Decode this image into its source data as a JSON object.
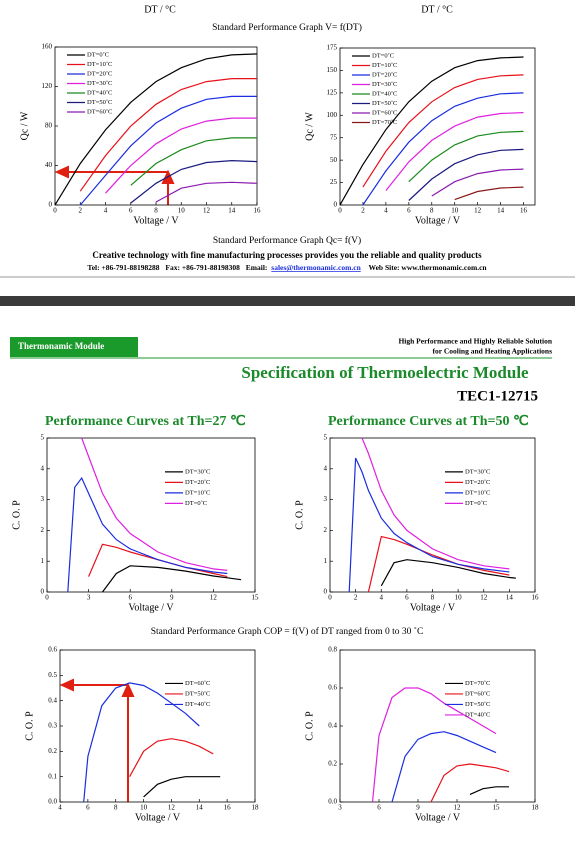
{
  "top_section": {
    "dt_label_left": "DT / °C",
    "dt_label_right": "DT / °C",
    "caption_vdt": "Standard Performance Graph V= f(DT)",
    "caption_qc": "Standard Performance Graph Qc= f(V)",
    "footer_slogan": "Creative technology with fine manufacturing processes provides you the reliable and quality products",
    "footer_tel": "Tel: +86-791-88198288",
    "footer_fax": "Fax: +86-791-88198308",
    "footer_email_label": "Email:",
    "footer_email": "sales@thermonamic.com.cn",
    "footer_web": "Web Site: www.thermonamic.com.cn"
  },
  "page_header": {
    "badge": "Thermonamic Module",
    "tagline_1": "High Performance and Highly Reliable Solution",
    "tagline_2": "for Cooling and Heating Applications",
    "title": "Specification of Thermoelectric Module",
    "model": "TEC1-12715"
  },
  "caption_cop": "Standard Performance Graph COP = f(V) of DT ranged from 0 to 30 ˚C",
  "chart_data": [
    {
      "type": "line",
      "x_label": "Voltage / V",
      "y_label": "Qc / W",
      "x": [
        0,
        2,
        4,
        6,
        8,
        10,
        12,
        14,
        16
      ],
      "xlim": [
        0,
        16
      ],
      "xticks": [
        0,
        2,
        4,
        6,
        8,
        10,
        12,
        14,
        16
      ],
      "ylim": [
        0,
        160
      ],
      "yticks": [
        0,
        40,
        80,
        120,
        160
      ],
      "legend": "upper left",
      "series": [
        {
          "name": "DT=0˚C",
          "color": "#000000",
          "values": [
            0,
            42,
            76,
            104,
            125,
            139,
            148,
            152,
            153
          ]
        },
        {
          "name": "DT=10˚C",
          "color": "#e8101a",
          "values": [
            null,
            14,
            50,
            80,
            102,
            117,
            125,
            128,
            128
          ]
        },
        {
          "name": "DT=20˚C",
          "color": "#1a2de0",
          "values": [
            null,
            0,
            30,
            60,
            83,
            98,
            107,
            110,
            110
          ]
        },
        {
          "name": "DT=30˚C",
          "color": "#e020e0",
          "values": [
            null,
            null,
            12,
            40,
            62,
            77,
            85,
            88,
            88
          ]
        },
        {
          "name": "DT=40˚C",
          "color": "#1a8a1a",
          "values": [
            null,
            null,
            null,
            20,
            42,
            56,
            65,
            68,
            68
          ]
        },
        {
          "name": "DT=50˚C",
          "color": "#1a1a80",
          "values": [
            null,
            null,
            null,
            2,
            22,
            36,
            43,
            45,
            44
          ]
        },
        {
          "name": "DT=60˚C",
          "color": "#8a1ab0",
          "values": [
            null,
            null,
            null,
            null,
            3,
            17,
            22,
            23,
            22
          ]
        }
      ]
    },
    {
      "type": "line",
      "x_label": "Voltage / V",
      "y_label": "Qc / W",
      "x": [
        0,
        2,
        4,
        6,
        8,
        10,
        12,
        14,
        16
      ],
      "xlim": [
        0,
        17
      ],
      "xticks": [
        0,
        2,
        4,
        6,
        8,
        10,
        12,
        14,
        16
      ],
      "ylim": [
        0,
        175
      ],
      "yticks": [
        0,
        25,
        50,
        75,
        100,
        125,
        150,
        175
      ],
      "legend": "upper left",
      "series": [
        {
          "name": "DT=0˚C",
          "color": "#000000",
          "values": [
            0,
            45,
            84,
            115,
            138,
            153,
            161,
            164,
            165
          ]
        },
        {
          "name": "DT=10˚C",
          "color": "#e8101a",
          "values": [
            null,
            20,
            60,
            92,
            115,
            131,
            140,
            144,
            145
          ]
        },
        {
          "name": "DT=20˚C",
          "color": "#1a2de0",
          "values": [
            null,
            0,
            38,
            70,
            94,
            110,
            119,
            124,
            125
          ]
        },
        {
          "name": "DT=30˚C",
          "color": "#e020e0",
          "values": [
            null,
            null,
            16,
            48,
            72,
            88,
            98,
            102,
            103
          ]
        },
        {
          "name": "DT=40˚C",
          "color": "#1a8a1a",
          "values": [
            null,
            null,
            null,
            26,
            50,
            67,
            77,
            81,
            82
          ]
        },
        {
          "name": "DT=50˚C",
          "color": "#1a1a80",
          "values": [
            null,
            null,
            null,
            5,
            29,
            46,
            56,
            61,
            62
          ]
        },
        {
          "name": "DT=60˚C",
          "color": "#8a1ab0",
          "values": [
            null,
            null,
            null,
            null,
            10,
            26,
            35,
            39,
            40
          ]
        },
        {
          "name": "DT=70˚C",
          "color": "#8a1a1a",
          "values": [
            null,
            null,
            null,
            null,
            null,
            6,
            15,
            19,
            20
          ]
        }
      ]
    },
    {
      "type": "line",
      "title": "Performance Curves at Th=27 ℃",
      "x_label": "Voltage / V",
      "y_label": "C. O. P",
      "x": [
        1.5,
        2,
        2.5,
        3,
        4,
        5,
        6,
        8,
        10,
        12,
        13,
        14
      ],
      "xlim": [
        0,
        15
      ],
      "xticks": [
        0,
        3,
        6,
        9,
        12,
        15
      ],
      "ylim": [
        0,
        5
      ],
      "yticks": [
        0,
        1,
        2,
        3,
        4,
        5
      ],
      "legend": "upper right",
      "series": [
        {
          "name": "DT=30˚C",
          "color": "#000000",
          "values": [
            null,
            null,
            null,
            null,
            0,
            0.6,
            0.85,
            0.8,
            0.68,
            0.52,
            0.46,
            0.4
          ]
        },
        {
          "name": "DT=20˚C",
          "color": "#e8101a",
          "values": [
            null,
            null,
            null,
            0.5,
            1.55,
            1.45,
            1.3,
            1.05,
            0.8,
            0.6,
            0.5,
            null
          ]
        },
        {
          "name": "DT=10˚C",
          "color": "#1a2de0",
          "values": [
            0,
            3.4,
            3.7,
            3.2,
            2.2,
            1.7,
            1.4,
            1.05,
            0.8,
            0.65,
            0.6,
            null
          ]
        },
        {
          "name": "DT=0˚C",
          "color": "#e020e0",
          "values": [
            null,
            null,
            5,
            4.4,
            3.2,
            2.4,
            1.9,
            1.3,
            0.95,
            0.75,
            0.7,
            null
          ]
        }
      ]
    },
    {
      "type": "line",
      "title": "Performance Curves at Th=50 ℃",
      "x_label": "Voltage / V",
      "y_label": "C. O. P",
      "x": [
        1.5,
        2,
        2.5,
        3,
        4,
        5,
        6,
        8,
        10,
        12,
        14,
        14.5
      ],
      "xlim": [
        0,
        16
      ],
      "xticks": [
        0,
        2,
        4,
        6,
        8,
        10,
        12,
        14,
        16
      ],
      "ylim": [
        0,
        5
      ],
      "yticks": [
        0,
        1,
        2,
        3,
        4,
        5
      ],
      "legend": "upper right",
      "series": [
        {
          "name": "DT=30˚C",
          "color": "#000000",
          "values": [
            null,
            null,
            null,
            null,
            0.2,
            0.95,
            1.05,
            0.95,
            0.8,
            0.6,
            0.47,
            0.45
          ]
        },
        {
          "name": "DT=20˚C",
          "color": "#e8101a",
          "values": [
            null,
            null,
            null,
            0,
            1.8,
            1.7,
            1.55,
            1.2,
            0.9,
            0.7,
            0.55,
            null
          ]
        },
        {
          "name": "DT=10˚C",
          "color": "#1a2de0",
          "values": [
            0,
            4.35,
            3.9,
            3.3,
            2.4,
            1.9,
            1.6,
            1.15,
            0.9,
            0.75,
            0.65,
            null
          ]
        },
        {
          "name": "DT=0˚C",
          "color": "#e020e0",
          "values": [
            null,
            null,
            5,
            4.5,
            3.3,
            2.5,
            2.0,
            1.4,
            1.05,
            0.85,
            0.75,
            null
          ]
        }
      ]
    },
    {
      "type": "line",
      "x_label": "Voltage / V",
      "y_label": "C. O. P",
      "x": [
        5.7,
        6,
        7,
        8,
        9,
        10,
        11,
        12,
        13,
        14,
        15,
        15.5
      ],
      "xlim": [
        4,
        18
      ],
      "xticks": [
        4,
        6,
        8,
        10,
        12,
        14,
        16,
        18
      ],
      "ylim": [
        0,
        0.6
      ],
      "yticks": [
        {
          "value": 0,
          "label": "0.0"
        },
        0.1,
        0.2,
        0.3,
        0.4,
        0.5,
        0.6
      ],
      "legend": "upper right",
      "series": [
        {
          "name": "DT=60˚C",
          "color": "#000000",
          "values": [
            null,
            null,
            null,
            null,
            null,
            0.02,
            0.07,
            0.09,
            0.1,
            0.1,
            0.1,
            0.1
          ]
        },
        {
          "name": "DT=50˚C",
          "color": "#e8101a",
          "values": [
            null,
            null,
            null,
            null,
            0.1,
            0.2,
            0.24,
            0.25,
            0.24,
            0.22,
            0.19,
            null
          ]
        },
        {
          "name": "DT=40˚C",
          "color": "#1a2de0",
          "values": [
            0,
            0.18,
            0.38,
            0.45,
            0.47,
            0.46,
            0.43,
            0.39,
            0.35,
            0.3,
            null,
            null
          ]
        }
      ]
    },
    {
      "type": "line",
      "x_label": "Voltage / V",
      "y_label": "C. O. P",
      "x": [
        5.5,
        6,
        7,
        8,
        9,
        10,
        11,
        12,
        13,
        14,
        15,
        16
      ],
      "xlim": [
        3,
        18
      ],
      "xticks": [
        3,
        6,
        9,
        12,
        15,
        18
      ],
      "ylim": [
        0,
        0.8
      ],
      "yticks": [
        {
          "value": 0,
          "label": "0.0"
        },
        0.2,
        0.4,
        0.6,
        0.8
      ],
      "legend": "upper right",
      "series": [
        {
          "name": "DT=70˚C",
          "color": "#000000",
          "values": [
            null,
            null,
            null,
            null,
            null,
            null,
            null,
            null,
            0.04,
            0.07,
            0.08,
            0.08
          ]
        },
        {
          "name": "DT=60˚C",
          "color": "#e8101a",
          "values": [
            null,
            null,
            null,
            null,
            null,
            0,
            0.14,
            0.19,
            0.2,
            0.19,
            0.18,
            0.16
          ]
        },
        {
          "name": "DT=50˚C",
          "color": "#1a2de0",
          "values": [
            null,
            null,
            0,
            0.24,
            0.33,
            0.36,
            0.37,
            0.35,
            0.32,
            0.29,
            0.26,
            null
          ]
        },
        {
          "name": "DT=40˚C",
          "color": "#e020e0",
          "values": [
            0,
            0.35,
            0.55,
            0.6,
            0.6,
            0.57,
            0.52,
            0.48,
            0.44,
            0.4,
            0.36,
            null
          ]
        }
      ]
    }
  ]
}
